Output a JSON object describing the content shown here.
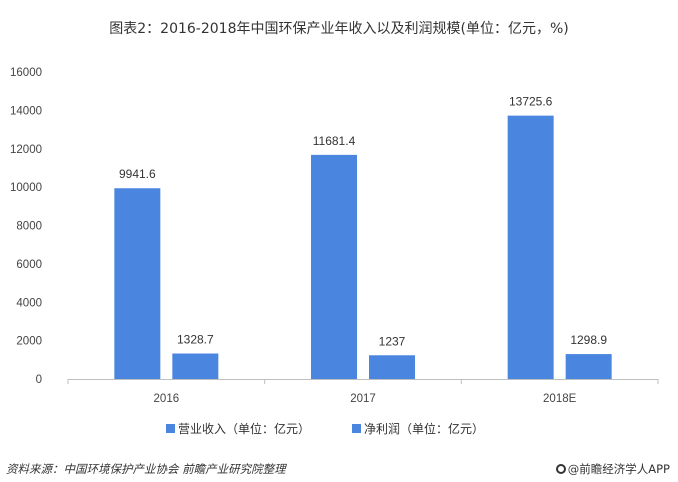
{
  "chart_data": {
    "type": "bar",
    "title": "图表2：2016-2018年中国环保产业年收入以及利润规模(单位：亿元，%)",
    "categories": [
      "2016",
      "2017",
      "2018E"
    ],
    "series": [
      {
        "name": "营业收入（单位：亿元）",
        "values": [
          9941.6,
          11681.4,
          13725.6
        ],
        "color": "#4a86e0"
      },
      {
        "name": "净利润（单位：亿元）",
        "values": [
          1328.7,
          1237,
          1298.9
        ],
        "color": "#4a86e0"
      }
    ],
    "data_labels": [
      [
        "9941.6",
        "11681.4",
        "13725.6"
      ],
      [
        "1328.7",
        "1237",
        "1298.9"
      ]
    ],
    "yticks": [
      0,
      2000,
      4000,
      6000,
      8000,
      10000,
      12000,
      14000,
      16000
    ],
    "ylim": [
      0,
      16000
    ],
    "xlabel": "",
    "ylabel": "",
    "grid": false,
    "legend": "bottom"
  },
  "footer": {
    "source": "资料来源：中国环境保护产业协会 前瞻产业研究院整理",
    "brand": "@前瞻经济学人APP"
  }
}
